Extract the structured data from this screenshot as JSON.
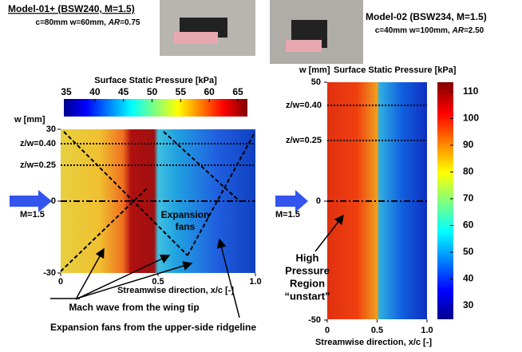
{
  "left": {
    "title": "Model-01+ (BSW240, M=1.5)",
    "subtitle": {
      "prefix": "c=80mm w=60mm, ",
      "italic": "AR",
      "suffix": "=0.75"
    },
    "colorbar_title": "Surface Static Pressure [kPa]",
    "colorbar_ticks": [
      35,
      40,
      45,
      50,
      55,
      60,
      65
    ],
    "y_label": "w [mm]",
    "yticks": [
      30,
      0,
      -30
    ],
    "xticks": [
      0,
      0.5,
      {
        "value": 1,
        "label": "1.0"
      }
    ],
    "x_label": "Streamwise direction, x/c [-]",
    "line_labels": [
      "z/w=0.40",
      "z/w=0.25"
    ],
    "flow_label": "M=1.5",
    "field_label": [
      "Expansion",
      "fans"
    ],
    "annotations": [
      "Mach wave from the wing tip",
      "Expansion fans from the upper-side ridgeline"
    ]
  },
  "right": {
    "title": "Model-02 (BSW234, M=1.5)",
    "subtitle": {
      "prefix": "c=40mm w=100mm, ",
      "italic": "AR",
      "suffix": "=2.50"
    },
    "colorbar_title": "Surface Static Pressure [kPa]",
    "colorbar_ticks": [
      30,
      40,
      50,
      60,
      70,
      80,
      90,
      100,
      110
    ],
    "y_label": "w [mm]",
    "yticks": [
      50,
      0,
      -50
    ],
    "xticks": [
      0,
      0.5,
      {
        "value": 1,
        "label": "1.0"
      }
    ],
    "x_label": "Streamwise direction, x/c [-]",
    "line_labels": [
      "z/w=0.40",
      "z/w=0.25"
    ],
    "flow_label": "M=1.5",
    "annotation": [
      "High",
      "Pressure",
      "Region",
      "“unstart”"
    ]
  }
}
